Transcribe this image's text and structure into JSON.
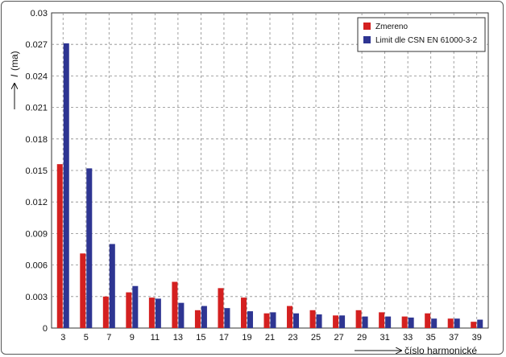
{
  "chart_data": {
    "type": "bar",
    "title": "",
    "xlabel": "číslo harmonické",
    "ylabel_symbol": "I",
    "ylabel_unit": "(ma)",
    "ylim": [
      0,
      0.03
    ],
    "yticks": [
      "0",
      "0.003",
      "0.006",
      "0.009",
      "0.012",
      "0.015",
      "0.018",
      "0.021",
      "0.024",
      "0.027",
      "0.03"
    ],
    "categories": [
      "3",
      "5",
      "7",
      "9",
      "11",
      "13",
      "15",
      "17",
      "19",
      "21",
      "23",
      "25",
      "27",
      "29",
      "31",
      "33",
      "35",
      "37",
      "39"
    ],
    "grid": true,
    "legend_position": "top-right",
    "series": [
      {
        "name": "Zmereno",
        "color": "#d42020",
        "values": [
          0.0156,
          0.0071,
          0.003,
          0.0034,
          0.0029,
          0.0044,
          0.0017,
          0.0038,
          0.0029,
          0.0014,
          0.0021,
          0.0017,
          0.0012,
          0.0017,
          0.0015,
          0.0011,
          0.0014,
          0.0009,
          0.0006
        ]
      },
      {
        "name": "Limit dle CSN EN 61000-3-2",
        "color": "#2e3592",
        "values": [
          0.0271,
          0.0152,
          0.008,
          0.004,
          0.0028,
          0.0024,
          0.0021,
          0.0019,
          0.0016,
          0.0015,
          0.0014,
          0.0013,
          0.0012,
          0.0011,
          0.0011,
          0.001,
          0.0009,
          0.0009,
          0.0008
        ]
      }
    ]
  }
}
